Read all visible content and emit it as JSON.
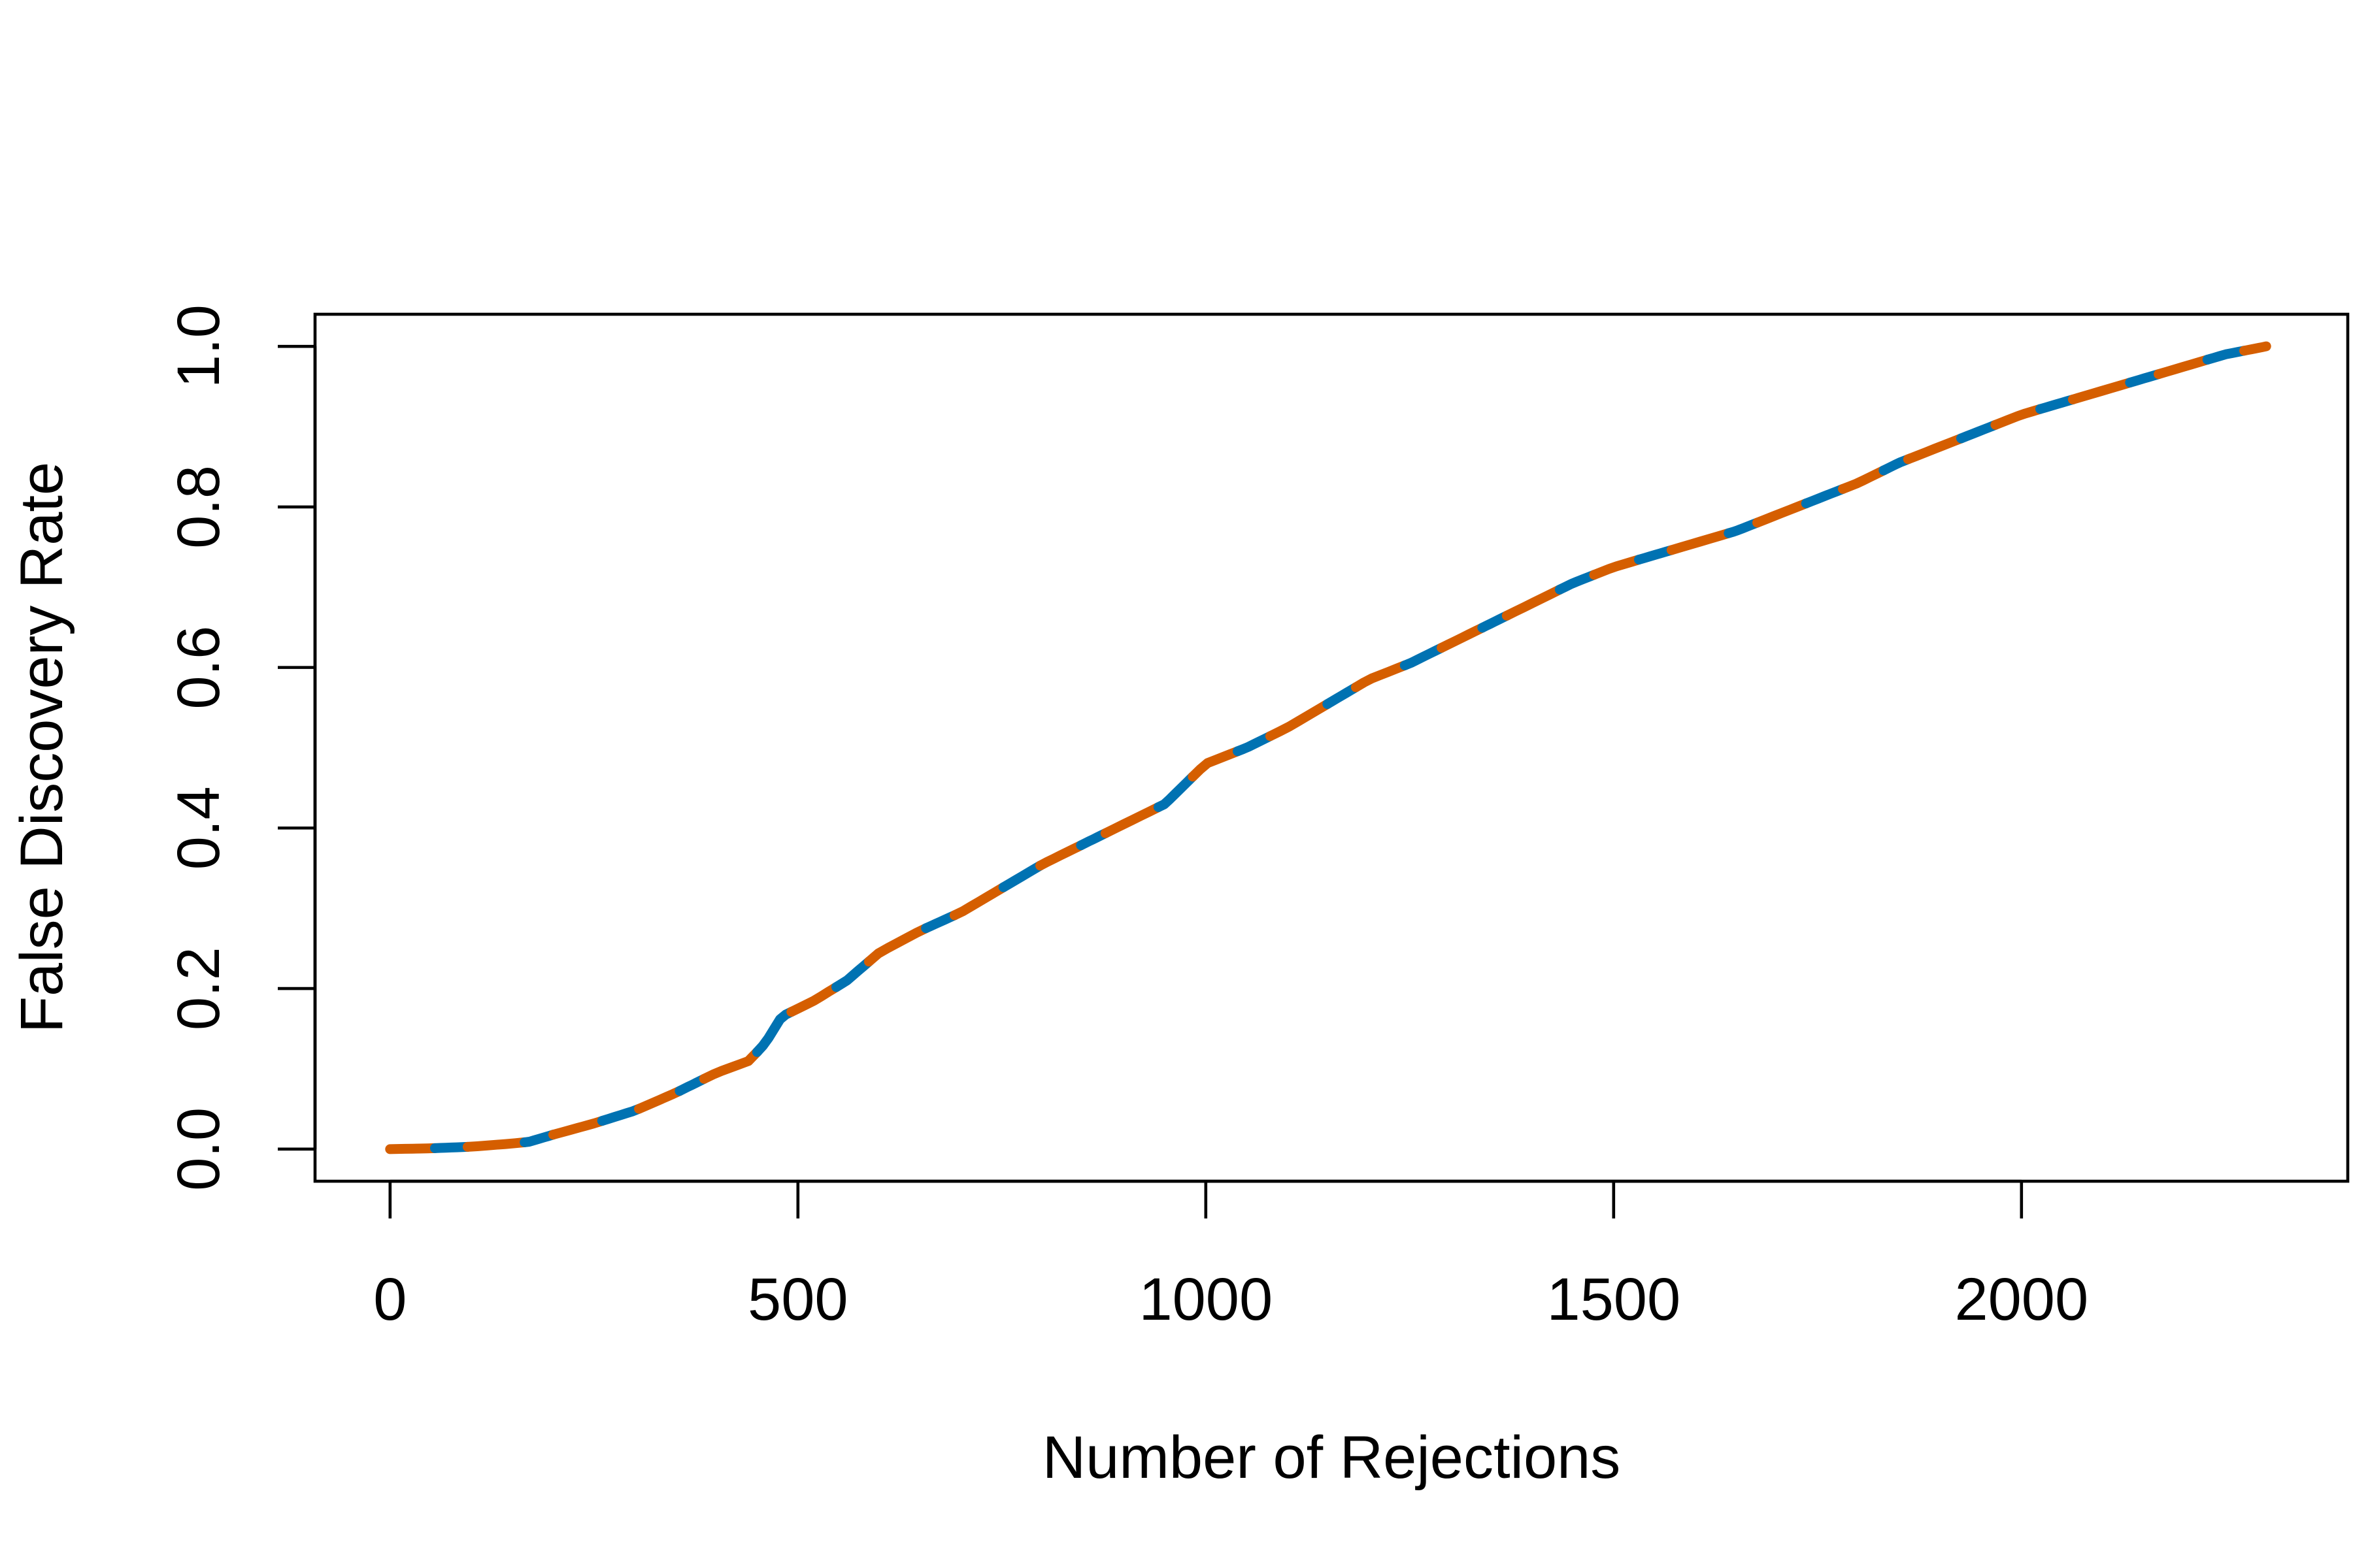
{
  "chart_data": {
    "type": "line",
    "title": "",
    "xlabel": "Number of Rejections",
    "ylabel": "False Discovery Rate",
    "xlim": [
      -92,
      2400
    ],
    "ylim": [
      -0.04,
      1.04
    ],
    "x_ticks": [
      0,
      500,
      1000,
      1500,
      2000
    ],
    "x_tick_labels": [
      "0",
      "500",
      "1000",
      "1500",
      "2000"
    ],
    "y_ticks": [
      0.0,
      0.2,
      0.4,
      0.6,
      0.8,
      1.0
    ],
    "y_tick_labels": [
      "0.0",
      "0.2",
      "0.4",
      "0.6",
      "0.8",
      "1.0"
    ],
    "grid": false,
    "legend": "none",
    "colors": {
      "blue": "#0072B2",
      "orange": "#D55E00"
    },
    "series": [
      {
        "x": [
          0,
          50,
          100,
          150,
          170,
          200,
          250,
          300,
          350,
          400,
          440,
          460,
          480,
          520,
          560,
          600,
          650,
          700,
          750,
          800,
          850,
          900,
          950,
          1000,
          1050,
          1100,
          1150,
          1200,
          1250,
          1300,
          1350,
          1400,
          1450,
          1500,
          1550,
          1600,
          1650,
          1700,
          1750,
          1800,
          1850,
          1900,
          1950,
          2000,
          2050,
          2100,
          2150,
          2200,
          2250,
          2300
        ],
        "y": [
          0.0,
          0.001,
          0.003,
          0.007,
          0.009,
          0.018,
          0.032,
          0.048,
          0.07,
          0.095,
          0.11,
          0.132,
          0.165,
          0.185,
          0.21,
          0.245,
          0.272,
          0.295,
          0.325,
          0.355,
          0.38,
          0.405,
          0.43,
          0.48,
          0.5,
          0.525,
          0.555,
          0.585,
          0.605,
          0.63,
          0.655,
          0.68,
          0.705,
          0.725,
          0.74,
          0.755,
          0.77,
          0.79,
          0.81,
          0.83,
          0.855,
          0.875,
          0.895,
          0.915,
          0.93,
          0.945,
          0.96,
          0.975,
          0.99,
          1.0
        ]
      }
    ]
  }
}
